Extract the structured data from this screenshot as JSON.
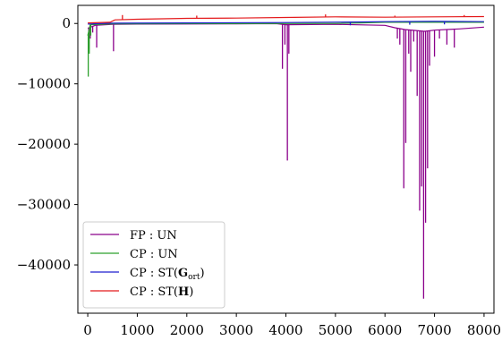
{
  "chart_data": {
    "type": "line",
    "title": "",
    "xlabel": "",
    "ylabel": "",
    "xlim": [
      -200,
      8200
    ],
    "ylim": [
      -48000,
      3000
    ],
    "xticks": [
      0,
      1000,
      2000,
      3000,
      4000,
      5000,
      6000,
      7000,
      8000
    ],
    "xtick_labels": [
      "0",
      "1000",
      "2000",
      "3000",
      "4000",
      "5000",
      "6000",
      "7000",
      "8000"
    ],
    "yticks": [
      0,
      -10000,
      -20000,
      -30000,
      -40000
    ],
    "ytick_labels": [
      "0",
      "−10000",
      "−20000",
      "−30000",
      "−40000"
    ],
    "grid": false,
    "legend_position": "lower-left",
    "series": [
      {
        "name": "FP : UN",
        "label_parts": {
          "main": "FP : UN"
        },
        "color": "#8b008b",
        "baseline": [
          [
            0,
            -800
          ],
          [
            150,
            -300
          ],
          [
            500,
            -150
          ],
          [
            1000,
            -100
          ],
          [
            2000,
            -80
          ],
          [
            3000,
            -50
          ],
          [
            3800,
            -30
          ],
          [
            4000,
            -200
          ],
          [
            5000,
            -150
          ],
          [
            6000,
            -300
          ],
          [
            6200,
            -700
          ],
          [
            6400,
            -1000
          ],
          [
            6800,
            -1300
          ],
          [
            7000,
            -1100
          ],
          [
            7500,
            -900
          ],
          [
            8000,
            -600
          ]
        ],
        "spikes": [
          [
            20,
            -4200
          ],
          [
            50,
            -2500
          ],
          [
            100,
            -1500
          ],
          [
            180,
            -4000
          ],
          [
            520,
            -4600
          ],
          [
            3930,
            -7500
          ],
          [
            3980,
            -3500
          ],
          [
            4030,
            -22700
          ],
          [
            4060,
            -5000
          ],
          [
            6250,
            -2500
          ],
          [
            6300,
            -3500
          ],
          [
            6380,
            -27300
          ],
          [
            6420,
            -19800
          ],
          [
            6480,
            -5000
          ],
          [
            6520,
            -8000
          ],
          [
            6580,
            -3000
          ],
          [
            6650,
            -12000
          ],
          [
            6700,
            -31000
          ],
          [
            6740,
            -27000
          ],
          [
            6780,
            -45600
          ],
          [
            6820,
            -33000
          ],
          [
            6860,
            -24000
          ],
          [
            6900,
            -7000
          ],
          [
            7000,
            -5500
          ],
          [
            7100,
            -2500
          ],
          [
            7250,
            -3500
          ],
          [
            7400,
            -4000
          ]
        ]
      },
      {
        "name": "CP : UN",
        "label_parts": {
          "main": "CP : UN"
        },
        "color": "#2ca02c",
        "baseline": [
          [
            0,
            -2000
          ],
          [
            50,
            -200
          ],
          [
            500,
            -50
          ],
          [
            2000,
            -20
          ],
          [
            5000,
            0
          ],
          [
            5500,
            100
          ],
          [
            6000,
            200
          ],
          [
            8000,
            200
          ]
        ],
        "spikes": [
          [
            10,
            -8800
          ],
          [
            30,
            -5000
          ],
          [
            60,
            -2000
          ]
        ]
      },
      {
        "name": "CP : ST(G_ort)",
        "label_parts": {
          "main": "CP : ST(",
          "bold": "G",
          "sub": "ort",
          "tail": ")"
        },
        "color": "#1f1fcf",
        "baseline": [
          [
            0,
            -100
          ],
          [
            500,
            50
          ],
          [
            2000,
            100
          ],
          [
            4000,
            150
          ],
          [
            5600,
            250
          ],
          [
            6000,
            300
          ],
          [
            7000,
            350
          ],
          [
            8000,
            300
          ]
        ],
        "spikes": [
          [
            5300,
            -300
          ],
          [
            6500,
            -200
          ],
          [
            7200,
            -150
          ]
        ]
      },
      {
        "name": "CP : ST(H)",
        "label_parts": {
          "main": "CP : ST(",
          "bold": "H",
          "tail": ")"
        },
        "color": "#e41a1c",
        "baseline": [
          [
            0,
            100
          ],
          [
            450,
            200
          ],
          [
            550,
            600
          ],
          [
            1000,
            700
          ],
          [
            2000,
            850
          ],
          [
            3000,
            900
          ],
          [
            4000,
            1000
          ],
          [
            5000,
            1100
          ],
          [
            6000,
            1050
          ],
          [
            7000,
            1100
          ],
          [
            8000,
            1150
          ]
        ],
        "spikes": [
          [
            700,
            1400
          ],
          [
            2200,
            1300
          ],
          [
            4800,
            1500
          ],
          [
            6200,
            1300
          ],
          [
            7600,
            1400
          ]
        ]
      }
    ]
  }
}
